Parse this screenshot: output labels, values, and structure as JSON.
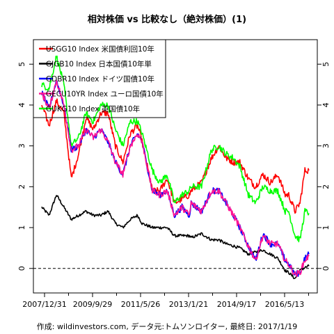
{
  "caption": "作成: wildinvestors.com, データ元:トムソンロイター, 最終日: 2017/1/19",
  "chart_data": {
    "type": "line",
    "title": "相対株価 vs 比較なし（絶対株価）(1)",
    "xlabel": "",
    "ylabel": "",
    "xlim": [
      "2007-12-31",
      "2017-01-19"
    ],
    "ylim": [
      -0.6,
      5.6
    ],
    "x_tick_labels": [
      "2007/12/31",
      "2009/9/29",
      "2011/5/26",
      "2013/1/21",
      "2014/9/17",
      "2016/5/13"
    ],
    "y_ticks": [
      0,
      1,
      2,
      3,
      4,
      5
    ],
    "y_tick_labels": [
      "0",
      "1",
      "2",
      "3",
      "4",
      "5"
    ],
    "reference_line": {
      "y": 0,
      "style": "dashed"
    },
    "legend_position": "top-left",
    "grid": false,
    "x": [
      "2007-12-31",
      "2008-03-31",
      "2008-06-30",
      "2008-09-30",
      "2008-12-31",
      "2009-03-31",
      "2009-06-30",
      "2009-09-29",
      "2009-12-31",
      "2010-03-31",
      "2010-06-30",
      "2010-09-30",
      "2010-12-31",
      "2011-03-31",
      "2011-05-26",
      "2011-09-30",
      "2011-12-31",
      "2012-03-31",
      "2012-06-30",
      "2012-09-30",
      "2012-12-31",
      "2013-01-21",
      "2013-05-31",
      "2013-09-30",
      "2013-12-31",
      "2014-03-31",
      "2014-06-30",
      "2014-09-17",
      "2014-12-31",
      "2015-03-31",
      "2015-06-30",
      "2015-09-30",
      "2015-12-31",
      "2016-03-31",
      "2016-05-13",
      "2016-07-31",
      "2016-09-30",
      "2016-11-30",
      "2017-01-19"
    ],
    "series": [
      {
        "name": "USGG10 Index 米国債利回10年",
        "color": "#ff0000",
        "values": [
          4.0,
          3.5,
          4.1,
          3.8,
          2.2,
          2.8,
          3.7,
          3.4,
          3.8,
          3.8,
          3.0,
          2.6,
          3.3,
          3.5,
          3.1,
          1.9,
          1.9,
          2.2,
          1.6,
          1.7,
          1.8,
          1.9,
          2.1,
          2.7,
          3.0,
          2.7,
          2.6,
          2.6,
          2.2,
          2.0,
          2.3,
          2.1,
          2.3,
          1.8,
          1.8,
          1.4,
          1.6,
          2.4,
          2.4
        ]
      },
      {
        "name": "GJGB10 Index 日本国債10年単",
        "color": "#000000",
        "values": [
          1.5,
          1.3,
          1.8,
          1.5,
          1.2,
          1.3,
          1.4,
          1.3,
          1.3,
          1.4,
          1.1,
          1.0,
          1.2,
          1.3,
          1.1,
          1.0,
          1.0,
          1.0,
          0.8,
          0.8,
          0.8,
          0.75,
          0.85,
          0.7,
          0.7,
          0.6,
          0.55,
          0.5,
          0.35,
          0.4,
          0.45,
          0.35,
          0.25,
          -0.05,
          -0.1,
          -0.25,
          -0.05,
          0.02,
          0.06
        ]
      },
      {
        "name": "GDBR10 Index ドイツ国債10年",
        "color": "#0000ff",
        "values": [
          4.3,
          3.9,
          4.6,
          4.0,
          2.9,
          3.0,
          3.4,
          3.2,
          3.4,
          3.1,
          2.6,
          2.3,
          3.0,
          3.3,
          3.1,
          1.9,
          1.8,
          1.9,
          1.3,
          1.5,
          1.3,
          1.6,
          1.4,
          1.9,
          1.9,
          1.6,
          1.3,
          1.0,
          0.55,
          0.2,
          0.85,
          0.6,
          0.6,
          0.2,
          0.1,
          -0.15,
          -0.1,
          0.25,
          0.35
        ]
      },
      {
        "name": "GECU10YR Index ユーロ国債10年",
        "color": "#ff1493",
        "values": [
          4.3,
          3.9,
          4.6,
          4.0,
          2.9,
          3.0,
          3.4,
          3.2,
          3.4,
          3.1,
          2.6,
          2.3,
          3.0,
          3.3,
          3.1,
          1.9,
          1.8,
          1.9,
          1.3,
          1.5,
          1.3,
          1.6,
          1.4,
          1.9,
          1.9,
          1.6,
          1.3,
          1.0,
          0.55,
          0.2,
          0.8,
          0.6,
          0.6,
          0.2,
          0.1,
          -0.15,
          -0.1,
          0.2,
          0.3
        ]
      },
      {
        "name": "GUKG10 Index 英国債10年",
        "color": "#00ff00",
        "values": [
          4.5,
          4.4,
          5.2,
          4.5,
          3.0,
          3.2,
          3.8,
          3.6,
          4.0,
          4.0,
          3.4,
          3.0,
          3.6,
          3.6,
          3.3,
          2.4,
          2.1,
          2.3,
          1.6,
          1.8,
          1.9,
          2.0,
          2.0,
          2.9,
          3.0,
          2.8,
          2.7,
          2.5,
          1.8,
          1.6,
          2.0,
          1.9,
          1.9,
          1.4,
          1.4,
          0.8,
          0.7,
          1.4,
          1.35
        ]
      }
    ]
  }
}
